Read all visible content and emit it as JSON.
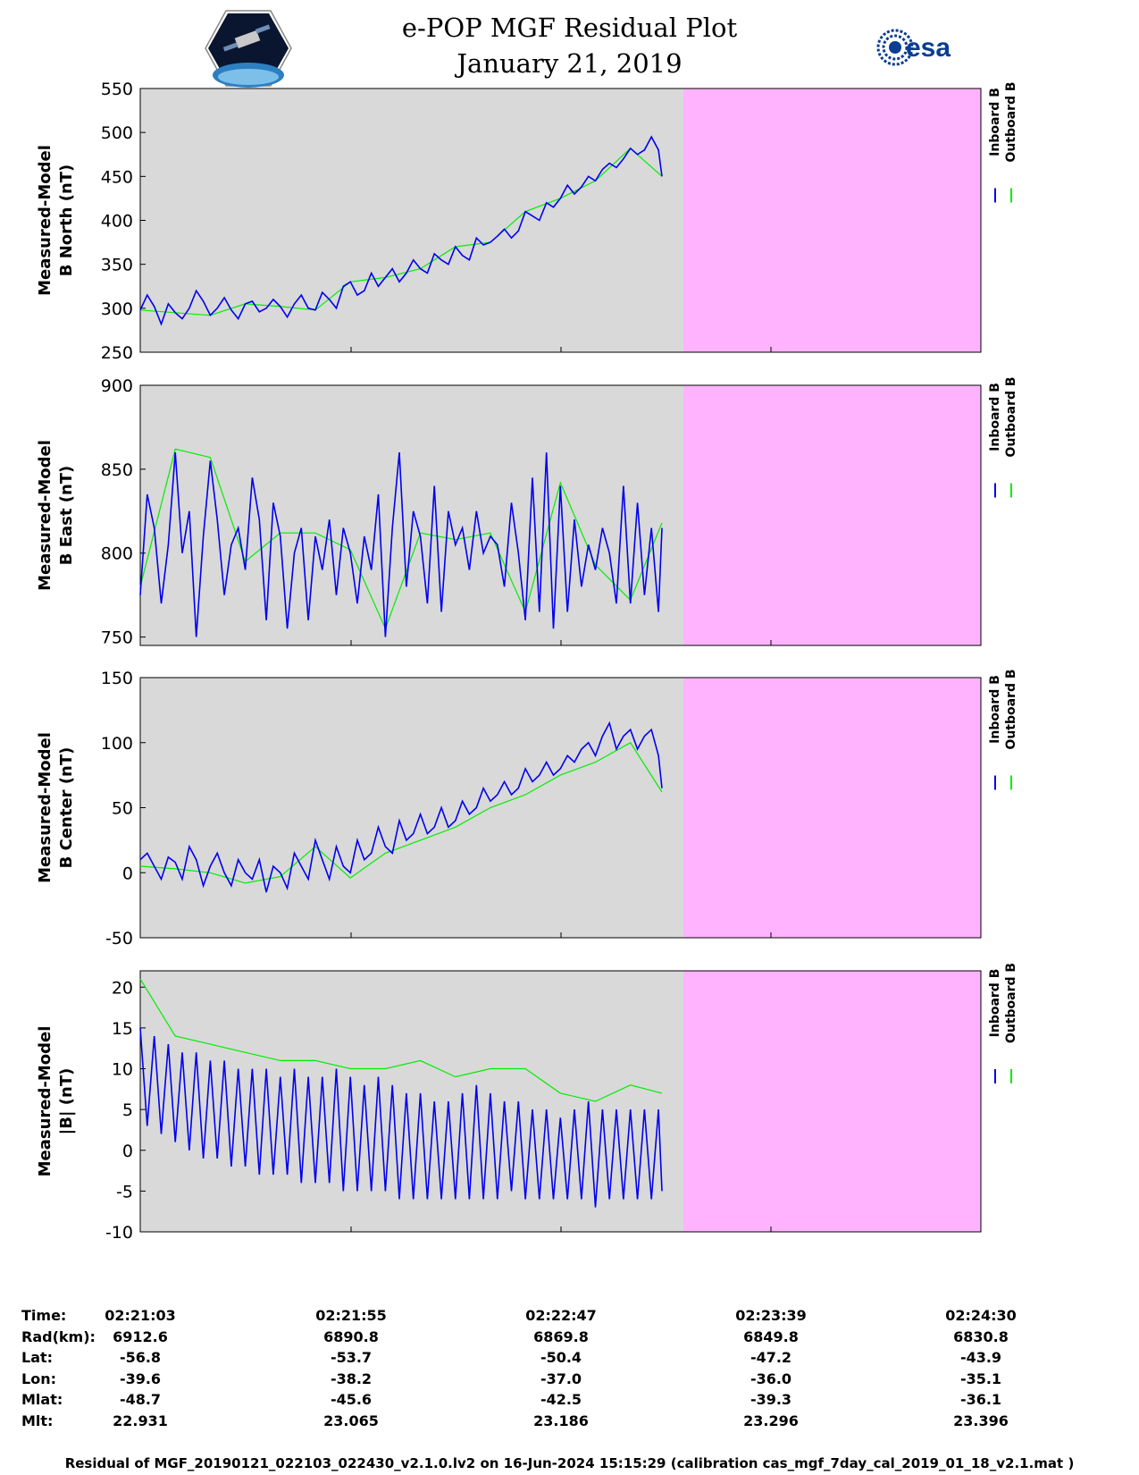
{
  "title": "e-POP MGF Residual Plot",
  "subtitle": "January 21, 2019",
  "logos": {
    "left": "CASSIOPE",
    "right": "esa"
  },
  "colors": {
    "panel_bg": "#d9d9d9",
    "no_data": "#ffb3ff",
    "inboard": "#0000ee",
    "outboard": "#00ee00"
  },
  "chart_data": [
    {
      "type": "line",
      "ylabel": [
        "Measured-Model",
        "B North (nT)"
      ],
      "ylim": [
        250,
        550
      ],
      "yticks": [
        250,
        300,
        350,
        400,
        450,
        500,
        550
      ],
      "legend": [
        "Inboard B",
        "Outboard B"
      ],
      "series": [
        {
          "name": "Inboard B",
          "x": [
            0,
            2,
            4,
            6,
            8,
            10,
            12,
            14,
            16,
            18,
            20,
            22,
            24,
            26,
            28,
            30,
            32,
            34,
            36,
            38,
            40,
            42,
            44,
            46,
            48,
            50,
            52,
            54,
            56,
            58,
            60,
            62,
            64,
            66,
            68,
            70,
            72,
            74,
            76,
            78,
            80,
            82,
            84,
            86,
            88,
            90,
            92,
            94,
            96,
            98,
            100,
            102,
            104,
            106,
            108,
            110,
            112,
            114,
            116,
            118,
            120,
            122,
            124,
            126,
            128,
            130,
            132,
            134,
            136,
            138,
            140,
            142,
            144,
            146,
            148,
            149
          ],
          "values": [
            298,
            315,
            302,
            282,
            305,
            295,
            288,
            300,
            320,
            308,
            292,
            300,
            312,
            298,
            288,
            305,
            308,
            296,
            300,
            310,
            302,
            290,
            305,
            315,
            300,
            298,
            318,
            310,
            300,
            325,
            330,
            315,
            320,
            340,
            325,
            335,
            345,
            330,
            340,
            355,
            345,
            340,
            362,
            355,
            350,
            370,
            360,
            355,
            380,
            372,
            375,
            382,
            390,
            380,
            388,
            410,
            405,
            400,
            420,
            415,
            425,
            440,
            430,
            438,
            450,
            445,
            458,
            465,
            460,
            470,
            482,
            475,
            480,
            495,
            480,
            450
          ]
        },
        {
          "name": "Outboard B",
          "x": [
            0,
            10,
            20,
            30,
            40,
            50,
            60,
            70,
            80,
            90,
            100,
            110,
            120,
            130,
            140,
            149
          ],
          "values": [
            298,
            295,
            292,
            305,
            302,
            298,
            330,
            335,
            345,
            370,
            375,
            410,
            425,
            445,
            482,
            450
          ]
        }
      ]
    },
    {
      "type": "line",
      "ylabel": [
        "Measured-Model",
        "B East (nT)"
      ],
      "ylim": [
        745,
        900
      ],
      "yticks": [
        750,
        800,
        850,
        900
      ],
      "legend": [
        "Inboard B",
        "Outboard B"
      ],
      "series": [
        {
          "name": "Inboard B",
          "x": [
            0,
            2,
            4,
            6,
            8,
            10,
            12,
            14,
            16,
            18,
            20,
            22,
            24,
            26,
            28,
            30,
            32,
            34,
            36,
            38,
            40,
            42,
            44,
            46,
            48,
            50,
            52,
            54,
            56,
            58,
            60,
            62,
            64,
            66,
            68,
            70,
            72,
            74,
            76,
            78,
            80,
            82,
            84,
            86,
            88,
            90,
            92,
            94,
            96,
            98,
            100,
            102,
            104,
            106,
            108,
            110,
            112,
            114,
            116,
            118,
            120,
            122,
            124,
            126,
            128,
            130,
            132,
            134,
            136,
            138,
            140,
            142,
            144,
            146,
            148,
            149
          ],
          "values": [
            775,
            835,
            815,
            770,
            805,
            860,
            800,
            825,
            750,
            810,
            855,
            820,
            775,
            805,
            815,
            790,
            845,
            820,
            760,
            830,
            810,
            755,
            800,
            815,
            760,
            810,
            790,
            820,
            775,
            815,
            800,
            770,
            810,
            790,
            835,
            750,
            815,
            860,
            780,
            825,
            810,
            770,
            840,
            765,
            825,
            805,
            815,
            790,
            825,
            800,
            810,
            805,
            780,
            830,
            800,
            760,
            845,
            765,
            860,
            755,
            840,
            765,
            820,
            780,
            805,
            790,
            815,
            800,
            770,
            840,
            770,
            830,
            775,
            815,
            765,
            815
          ]
        },
        {
          "name": "Outboard B",
          "x": [
            0,
            10,
            20,
            30,
            40,
            50,
            60,
            70,
            80,
            90,
            100,
            110,
            120,
            130,
            140,
            149
          ],
          "values": [
            780,
            862,
            857,
            795,
            812,
            812,
            802,
            755,
            812,
            808,
            812,
            765,
            842,
            793,
            772,
            818
          ]
        }
      ]
    },
    {
      "type": "line",
      "ylabel": [
        "Measured-Model",
        "B Center (nT)"
      ],
      "ylim": [
        -50,
        150
      ],
      "yticks": [
        -50,
        0,
        50,
        100,
        150
      ],
      "legend": [
        "Inboard B",
        "Outboard B"
      ],
      "series": [
        {
          "name": "Inboard B",
          "x": [
            0,
            2,
            4,
            6,
            8,
            10,
            12,
            14,
            16,
            18,
            20,
            22,
            24,
            26,
            28,
            30,
            32,
            34,
            36,
            38,
            40,
            42,
            44,
            46,
            48,
            50,
            52,
            54,
            56,
            58,
            60,
            62,
            64,
            66,
            68,
            70,
            72,
            74,
            76,
            78,
            80,
            82,
            84,
            86,
            88,
            90,
            92,
            94,
            96,
            98,
            100,
            102,
            104,
            106,
            108,
            110,
            112,
            114,
            116,
            118,
            120,
            122,
            124,
            126,
            128,
            130,
            132,
            134,
            136,
            138,
            140,
            142,
            144,
            146,
            148,
            149
          ],
          "values": [
            10,
            15,
            5,
            -5,
            12,
            8,
            -5,
            20,
            10,
            -10,
            5,
            15,
            0,
            -10,
            10,
            0,
            -5,
            10,
            -15,
            5,
            0,
            -12,
            15,
            5,
            -5,
            25,
            10,
            -5,
            20,
            5,
            0,
            25,
            10,
            15,
            35,
            20,
            15,
            40,
            25,
            30,
            45,
            30,
            35,
            50,
            35,
            40,
            55,
            45,
            50,
            65,
            55,
            60,
            70,
            60,
            65,
            80,
            70,
            75,
            85,
            75,
            80,
            90,
            85,
            95,
            100,
            90,
            105,
            115,
            95,
            105,
            110,
            95,
            105,
            110,
            90,
            65
          ]
        },
        {
          "name": "Outboard B",
          "x": [
            0,
            10,
            20,
            30,
            40,
            50,
            60,
            70,
            80,
            90,
            100,
            110,
            120,
            130,
            140,
            149
          ],
          "values": [
            5,
            3,
            0,
            -8,
            -3,
            20,
            -4,
            15,
            25,
            35,
            50,
            60,
            75,
            85,
            100,
            62
          ]
        }
      ]
    },
    {
      "type": "line",
      "ylabel": [
        "Measured-Model",
        "|B| (nT)"
      ],
      "ylim": [
        -10,
        22
      ],
      "yticks": [
        -10,
        -5,
        0,
        5,
        10,
        15,
        20
      ],
      "legend": [
        "Inboard B",
        "Outboard B"
      ],
      "series": [
        {
          "name": "Inboard B",
          "x": [
            0,
            2,
            4,
            6,
            8,
            10,
            12,
            14,
            16,
            18,
            20,
            22,
            24,
            26,
            28,
            30,
            32,
            34,
            36,
            38,
            40,
            42,
            44,
            46,
            48,
            50,
            52,
            54,
            56,
            58,
            60,
            62,
            64,
            66,
            68,
            70,
            72,
            74,
            76,
            78,
            80,
            82,
            84,
            86,
            88,
            90,
            92,
            94,
            96,
            98,
            100,
            102,
            104,
            106,
            108,
            110,
            112,
            114,
            116,
            118,
            120,
            122,
            124,
            126,
            128,
            130,
            132,
            134,
            136,
            138,
            140,
            142,
            144,
            146,
            148,
            149
          ],
          "values": [
            15,
            3,
            14,
            2,
            13,
            1,
            12,
            0,
            12,
            -1,
            11,
            -1,
            11,
            -2,
            10,
            -2,
            10,
            -3,
            10,
            -3,
            9,
            -3,
            10,
            -4,
            9,
            -4,
            9,
            -4,
            10,
            -5,
            9,
            -5,
            8,
            -5,
            9,
            -5,
            8,
            -6,
            7,
            -6,
            7,
            -6,
            6,
            -6,
            6,
            -6,
            7,
            -6,
            8,
            -6,
            7,
            -6,
            6,
            -5,
            6,
            -6,
            5,
            -6,
            5,
            -6,
            4,
            -6,
            5,
            -6,
            6,
            -7,
            5,
            -6,
            5,
            -6,
            5,
            -6,
            5,
            -6,
            5,
            -5
          ]
        },
        {
          "name": "Outboard B",
          "x": [
            0,
            10,
            20,
            30,
            40,
            50,
            60,
            70,
            80,
            90,
            100,
            110,
            120,
            130,
            140,
            149
          ],
          "values": [
            21,
            14,
            13,
            12,
            11,
            11,
            10,
            10,
            11,
            9,
            10,
            10,
            7,
            6,
            8,
            7
          ]
        }
      ]
    }
  ],
  "x_axis": {
    "row_labels": [
      "Time:",
      "Rad(km):",
      "Lat:",
      "Lon:",
      "Mlat:",
      "Mlt:"
    ],
    "ticks": [
      {
        "time": "02:21:03",
        "rad": "6912.6",
        "lat": "-56.8",
        "lon": "-39.6",
        "mlat": "-48.7",
        "mlt": "22.931"
      },
      {
        "time": "02:21:55",
        "rad": "6890.8",
        "lat": "-53.7",
        "lon": "-38.2",
        "mlat": "-45.6",
        "mlt": "23.065"
      },
      {
        "time": "02:22:47",
        "rad": "6869.8",
        "lat": "-50.4",
        "lon": "-37.0",
        "mlat": "-42.5",
        "mlt": "23.186"
      },
      {
        "time": "02:23:39",
        "rad": "6849.8",
        "lat": "-47.2",
        "lon": "-36.0",
        "mlat": "-39.3",
        "mlt": "23.296"
      },
      {
        "time": "02:24:30",
        "rad": "6830.8",
        "lat": "-43.9",
        "lon": "-35.1",
        "mlat": "-36.1",
        "mlt": "23.396"
      }
    ]
  },
  "footer": "Residual of MGF_20190121_022103_022430_v2.1.0.lv2 on 16-Jun-2024 15:15:29 (calibration cas_mgf_7day_cal_2019_01_18_v2.1.mat )"
}
